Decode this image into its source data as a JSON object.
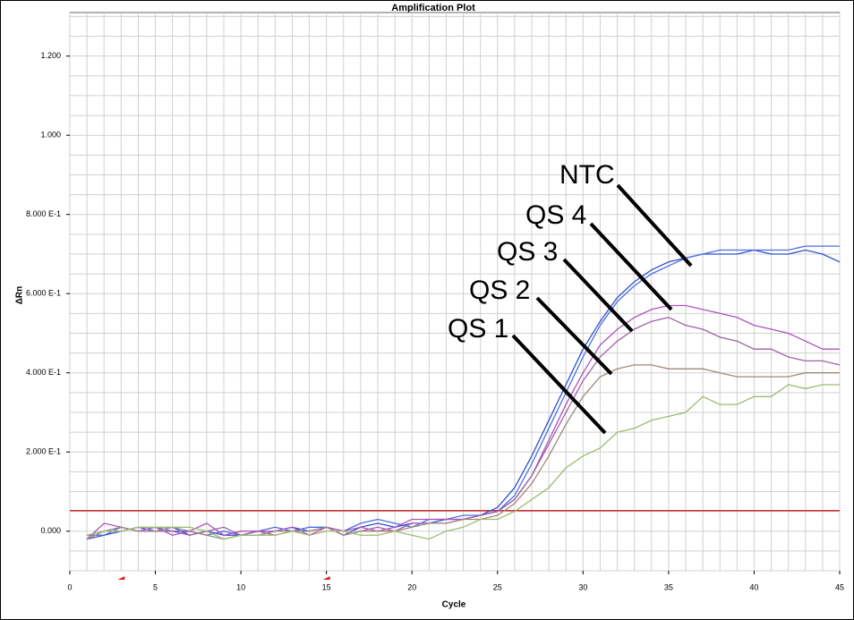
{
  "chart_data": {
    "type": "line",
    "title": "Amplification Plot",
    "x_label": "Cycle",
    "y_label": "ΔRn",
    "x": [
      1,
      2,
      3,
      4,
      5,
      6,
      7,
      8,
      9,
      10,
      11,
      12,
      13,
      14,
      15,
      16,
      17,
      18,
      19,
      20,
      21,
      22,
      23,
      24,
      25,
      26,
      27,
      28,
      29,
      30,
      31,
      32,
      33,
      34,
      35,
      36,
      37,
      38,
      39,
      40,
      41,
      42,
      43,
      44,
      45
    ],
    "series": [
      {
        "color": "#3050d0",
        "values": [
          -0.02,
          -0.01,
          0,
          0.01,
          0,
          0.01,
          -0.01,
          0,
          -0.01,
          -0.01,
          0,
          0,
          0.01,
          0,
          0.01,
          -0.01,
          0.01,
          0.02,
          0.01,
          0.02,
          0.02,
          0.03,
          0.03,
          0.04,
          0.06,
          0.11,
          0.19,
          0.28,
          0.37,
          0.46,
          0.53,
          0.59,
          0.63,
          0.66,
          0.68,
          0.69,
          0.7,
          0.7,
          0.7,
          0.71,
          0.7,
          0.7,
          0.71,
          0.7,
          0.68
        ]
      },
      {
        "color": "#4a6ee0",
        "values": [
          -0.01,
          -0.01,
          0.01,
          0,
          0.01,
          0,
          0,
          -0.01,
          0,
          -0.01,
          0,
          0.01,
          0,
          0.01,
          0.01,
          0,
          0.02,
          0.03,
          0.02,
          0.01,
          0.03,
          0.03,
          0.04,
          0.04,
          0.05,
          0.09,
          0.17,
          0.26,
          0.35,
          0.44,
          0.52,
          0.58,
          0.62,
          0.65,
          0.67,
          0.69,
          0.7,
          0.71,
          0.71,
          0.71,
          0.71,
          0.71,
          0.72,
          0.72,
          0.72
        ]
      },
      {
        "color": "#b050c0",
        "values": [
          -0.02,
          0.02,
          0.01,
          0,
          0.01,
          -0.01,
          0,
          0.02,
          -0.01,
          0,
          0,
          0,
          0.01,
          -0.01,
          0.01,
          0,
          0.01,
          0,
          0.01,
          0.03,
          0.03,
          0.03,
          0.03,
          0.04,
          0.05,
          0.08,
          0.14,
          0.23,
          0.32,
          0.4,
          0.47,
          0.51,
          0.54,
          0.56,
          0.57,
          0.57,
          0.56,
          0.55,
          0.54,
          0.52,
          0.51,
          0.5,
          0.48,
          0.46,
          0.46
        ]
      },
      {
        "color": "#a060a8",
        "values": [
          -0.01,
          0,
          0.01,
          0,
          0,
          0,
          -0.01,
          0,
          0.01,
          -0.01,
          0,
          -0.01,
          0,
          0,
          0.01,
          -0.01,
          0,
          0.01,
          0,
          0.02,
          0.02,
          0.02,
          0.03,
          0.04,
          0.05,
          0.08,
          0.14,
          0.22,
          0.3,
          0.38,
          0.44,
          0.48,
          0.51,
          0.53,
          0.54,
          0.52,
          0.51,
          0.49,
          0.48,
          0.46,
          0.46,
          0.44,
          0.43,
          0.43,
          0.42
        ]
      },
      {
        "color": "#a08878",
        "values": [
          -0.02,
          0,
          0.01,
          0,
          0,
          0.01,
          0,
          -0.01,
          -0.02,
          -0.01,
          -0.01,
          0,
          0,
          0,
          0.01,
          -0.01,
          0,
          0,
          0,
          0.01,
          0.02,
          0.02,
          0.03,
          0.03,
          0.04,
          0.07,
          0.12,
          0.19,
          0.27,
          0.34,
          0.39,
          0.41,
          0.42,
          0.42,
          0.41,
          0.41,
          0.41,
          0.4,
          0.39,
          0.39,
          0.39,
          0.39,
          0.4,
          0.4,
          0.4
        ]
      },
      {
        "color": "#9cbc70",
        "values": [
          -0.01,
          0,
          0,
          0.01,
          0.01,
          0.01,
          0.01,
          0,
          -0.02,
          -0.01,
          -0.01,
          -0.01,
          0,
          -0.01,
          0,
          0,
          -0.01,
          -0.01,
          0,
          -0.01,
          -0.02,
          0,
          0.01,
          0.03,
          0.03,
          0.05,
          0.08,
          0.11,
          0.16,
          0.19,
          0.21,
          0.25,
          0.26,
          0.28,
          0.29,
          0.3,
          0.34,
          0.32,
          0.32,
          0.34,
          0.34,
          0.37,
          0.36,
          0.37,
          0.37
        ]
      }
    ],
    "annotations": [
      "NTC",
      "QS 4",
      "QS 3",
      "QS 2",
      "QS 1"
    ],
    "xlim": [
      0,
      45
    ],
    "xticks": [
      0,
      5,
      10,
      15,
      20,
      25,
      30,
      35,
      40,
      45
    ],
    "ylim": [
      -0.1,
      1.31
    ],
    "yticks": [
      {
        "value": 0,
        "label": "0.000"
      },
      {
        "value": 0.2,
        "label": "2.000 E-1"
      },
      {
        "value": 0.4,
        "label": "4.000 E-1"
      },
      {
        "value": 0.6,
        "label": "6.000 E-1"
      },
      {
        "value": 0.8,
        "label": "8.000 E-1"
      },
      {
        "value": 1.0,
        "label": "1.000"
      },
      {
        "value": 1.2,
        "label": "1.200"
      }
    ],
    "grid": true,
    "x_minor_step": 1,
    "y_minor_step": 0.05,
    "threshold": 0.052,
    "threshold_color": "#d03030",
    "baseline": [
      3,
      15
    ],
    "baseline_color": "#e02020"
  }
}
